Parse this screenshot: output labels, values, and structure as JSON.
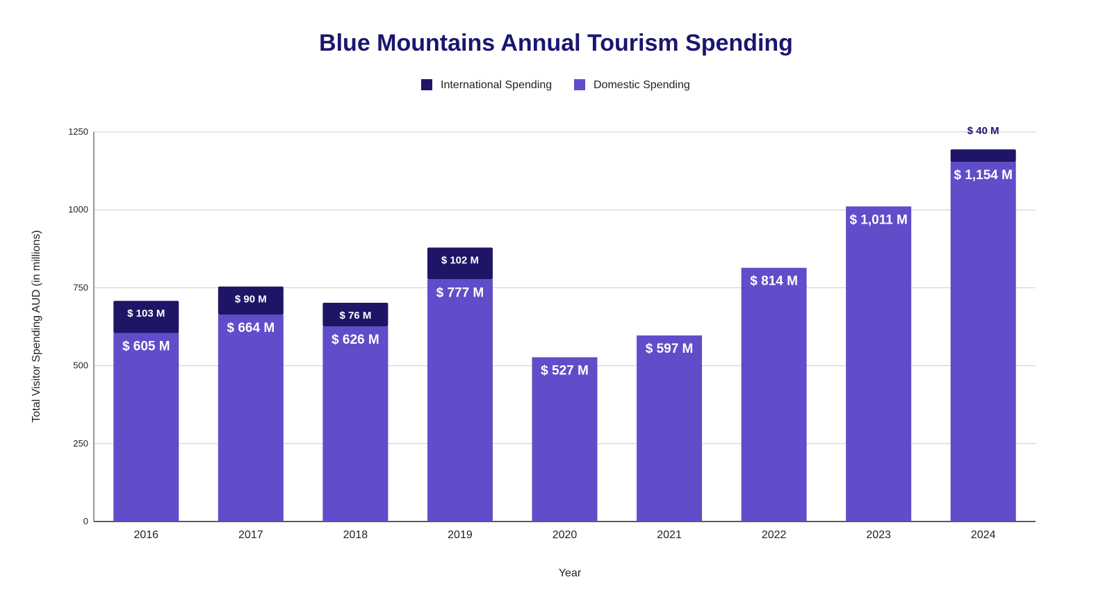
{
  "chart_data": {
    "type": "bar",
    "stacked": true,
    "title": "Blue Mountains Annual Tourism Spending",
    "xlabel": "Year",
    "ylabel": "Total Visitor Spending AUD (in millions)",
    "ylim": [
      0,
      1250
    ],
    "yticks": [
      0,
      250,
      500,
      750,
      1000,
      1250
    ],
    "grid": true,
    "legend_position": "top-center",
    "categories": [
      "2016",
      "2017",
      "2018",
      "2019",
      "2020",
      "2021",
      "2022",
      "2023",
      "2024"
    ],
    "series": [
      {
        "name": "Domestic Spending",
        "color": "#5f4dc9",
        "values": [
          605,
          664,
          626,
          777,
          527,
          597,
          814,
          1011,
          1154
        ],
        "labels": [
          "$ 605 M",
          "$ 664 M",
          "$ 626 M",
          "$ 777 M",
          "$ 527 M",
          "$ 597 M",
          "$ 814 M",
          "$ 1,011 M",
          "$ 1,154 M"
        ]
      },
      {
        "name": "International Spending",
        "color": "#1f1566",
        "values": [
          103,
          90,
          76,
          102,
          0,
          0,
          0,
          0,
          40
        ],
        "labels": [
          "$ 103 M",
          "$ 90 M",
          "$ 76 M",
          "$ 102 M",
          "",
          "",
          "",
          "",
          "$ 40 M"
        ]
      }
    ],
    "legend_order": [
      "International Spending",
      "Domestic Spending"
    ],
    "colors": {
      "title": "#1a1670"
    }
  }
}
